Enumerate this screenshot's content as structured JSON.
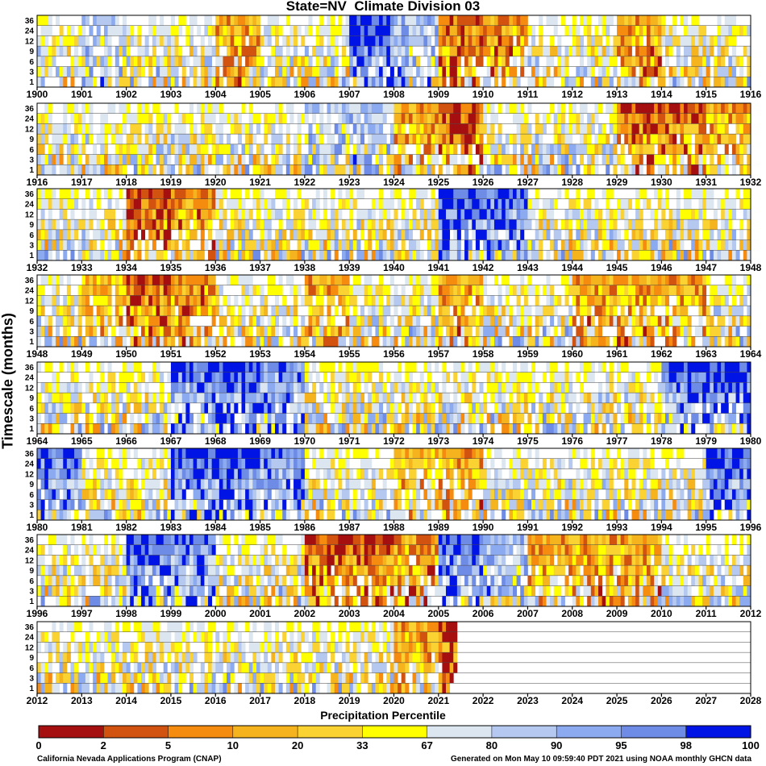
{
  "chart_data": {
    "type": "heatmap",
    "title": "State=NV  Climate Division 03",
    "ylabel": "Timescale (months)",
    "timescales": [
      "1",
      "3",
      "6",
      "9",
      "12",
      "24",
      "36"
    ],
    "panels": [
      {
        "start": "1900",
        "end": "1916",
        "years": [
          "1900",
          "1901",
          "1902",
          "1903",
          "1904",
          "1905",
          "1906",
          "1907",
          "1908",
          "1909",
          "1910",
          "1911",
          "1912",
          "1913",
          "1914",
          "1915",
          "1916"
        ]
      },
      {
        "start": "1916",
        "end": "1932",
        "years": [
          "1916",
          "1917",
          "1918",
          "1919",
          "1920",
          "1921",
          "1922",
          "1923",
          "1924",
          "1925",
          "1926",
          "1927",
          "1928",
          "1929",
          "1930",
          "1931",
          "1932"
        ]
      },
      {
        "start": "1932",
        "end": "1948",
        "years": [
          "1932",
          "1933",
          "1934",
          "1935",
          "1936",
          "1937",
          "1938",
          "1939",
          "1940",
          "1941",
          "1942",
          "1943",
          "1944",
          "1945",
          "1946",
          "1947",
          "1948"
        ]
      },
      {
        "start": "1948",
        "end": "1964",
        "years": [
          "1948",
          "1949",
          "1950",
          "1951",
          "1952",
          "1953",
          "1954",
          "1955",
          "1956",
          "1957",
          "1958",
          "1959",
          "1960",
          "1961",
          "1962",
          "1963",
          "1964"
        ]
      },
      {
        "start": "1964",
        "end": "1980",
        "years": [
          "1964",
          "1965",
          "1966",
          "1967",
          "1968",
          "1969",
          "1970",
          "1971",
          "1972",
          "1973",
          "1974",
          "1975",
          "1976",
          "1977",
          "1978",
          "1979",
          "1980"
        ]
      },
      {
        "start": "1980",
        "end": "1996",
        "years": [
          "1980",
          "1981",
          "1982",
          "1983",
          "1984",
          "1985",
          "1986",
          "1987",
          "1988",
          "1989",
          "1990",
          "1991",
          "1992",
          "1993",
          "1994",
          "1995",
          "1996"
        ]
      },
      {
        "start": "1996",
        "end": "2012",
        "years": [
          "1996",
          "1997",
          "1998",
          "1999",
          "2000",
          "2001",
          "2002",
          "2003",
          "2004",
          "2005",
          "2006",
          "2007",
          "2008",
          "2009",
          "2010",
          "2011",
          "2012"
        ]
      },
      {
        "start": "2012",
        "end": "2028",
        "years": [
          "2012",
          "2013",
          "2014",
          "2015",
          "2016",
          "2017",
          "2018",
          "2019",
          "2020",
          "2021",
          "2022",
          "2023",
          "2024",
          "2025",
          "2026",
          "2027",
          "2028"
        ]
      }
    ],
    "data_end": "2021-05",
    "legend": {
      "title": "Precipitation Percentile",
      "ticks": [
        "0",
        "2",
        "5",
        "10",
        "20",
        "33",
        "67",
        "80",
        "90",
        "95",
        "98",
        "100"
      ],
      "colors": [
        "#a50f0f",
        "#d2520f",
        "#f58c0f",
        "#f5b41e",
        "#fad232",
        "#ffff00",
        "#ffffff",
        "#dce6f0",
        "#b4c8f0",
        "#8caaf0",
        "#6e8ce6",
        "#0014e6"
      ]
    },
    "notable_wet_periods": [
      "1907",
      "1941-1942",
      "1967-1969",
      "1978-1979",
      "1980",
      "1983-1985",
      "1995",
      "1998-1999",
      "2005"
    ],
    "notable_dry_periods": [
      "1909-1910",
      "1925",
      "1929-1930",
      "1934",
      "1950-1951",
      "2002-2004",
      "2021"
    ]
  },
  "footer": {
    "left": "California Nevada Applications Program (CNAP)",
    "right": "Generated on Mon May 10 09:59:40 PDT 2021 using NOAA monthly GHCN data"
  }
}
